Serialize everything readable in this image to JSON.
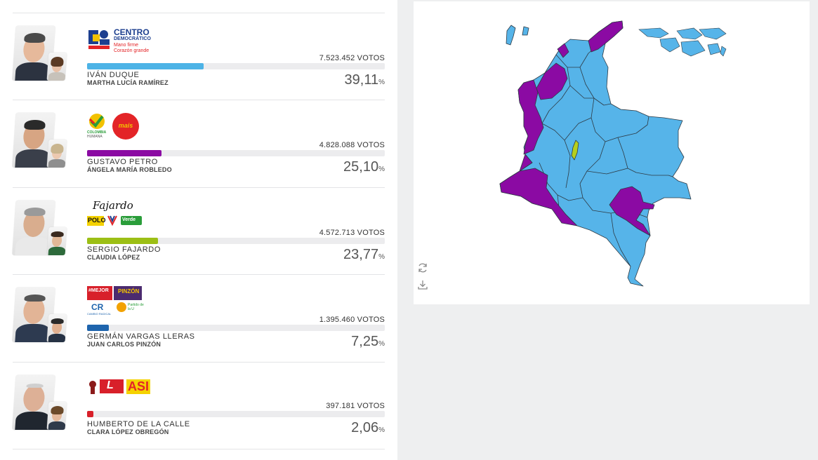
{
  "candidates": [
    {
      "name": "IVÁN DUQUE",
      "vice": "MARTHA LUCÍA RAMÍREZ",
      "votes": "7.523.452 VOTOS",
      "pct": "39,11",
      "pct_sign": "%",
      "share": 39.11,
      "color": "#4db3e6",
      "logo": {
        "title": "CENTRO",
        "subtitle": "DEMOCRÁTICO",
        "tagline1": "Mano firme",
        "tagline2": "Corazón grande"
      }
    },
    {
      "name": "GUSTAVO PETRO",
      "vice": "ÁNGELA MARÍA ROBLEDO",
      "votes": "4.828.088 VOTOS",
      "pct": "25,10",
      "pct_sign": "%",
      "share": 25.1,
      "color": "#8b0aa3",
      "logo": {
        "left_a": "COLOMBIA",
        "left_b": "HUMANA",
        "right": "mais"
      }
    },
    {
      "name": "SERGIO FAJARDO",
      "vice": "CLAUDIA LÓPEZ",
      "votes": "4.572.713 VOTOS",
      "pct": "23,77",
      "pct_sign": "%",
      "share": 23.77,
      "color": "#9cbf15",
      "logo": {
        "signature": "Fajardo",
        "polo": "POLO",
        "verde": "Verde"
      }
    },
    {
      "name": "GERMÁN VARGAS LLERAS",
      "vice": "JUAN CARLOS PINZÓN",
      "votes": "1.395.460 VOTOS",
      "pct": "7,25",
      "pct_sign": "%",
      "share": 7.25,
      "color": "#1e64ad",
      "logo": {
        "mejor": "#MEJOR",
        "pinzon": "PINZÓN",
        "cr": "CR",
        "cr_sub": "CAMBIO RADICAL",
        "right": "Partido de la U"
      }
    },
    {
      "name": "HUMBERTO DE LA CALLE",
      "vice": "CLARA LÓPEZ OBREGÓN",
      "votes": "397.181 VOTOS",
      "pct": "2,06",
      "pct_sign": "%",
      "share": 2.06,
      "color": "#d8202a",
      "logo": {
        "liberal": "L",
        "asi": "ASI"
      }
    }
  ],
  "map": {
    "colors": {
      "duque": "#56b4e9",
      "petro": "#8b0aa3",
      "fajardo": "#b5cf1e",
      "border": "#2e3a44"
    },
    "tools": {
      "refresh_icon": "refresh-icon",
      "download_icon": "download-icon"
    }
  }
}
